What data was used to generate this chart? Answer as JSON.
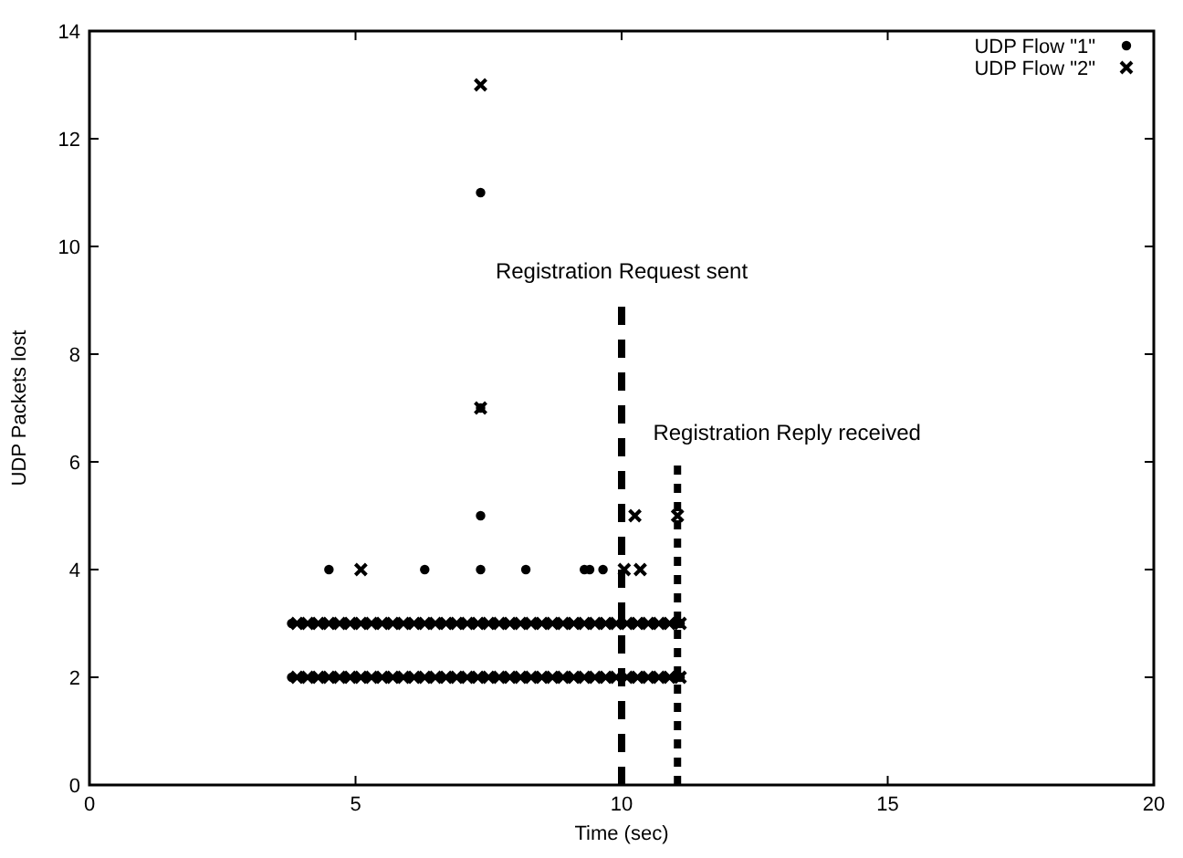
{
  "chart_data": {
    "type": "scatter",
    "xlabel": "Time (sec)",
    "ylabel": "UDP Packets lost",
    "xlim": [
      0,
      20
    ],
    "ylim": [
      0,
      14
    ],
    "xticks": [
      0,
      5,
      10,
      15,
      20
    ],
    "yticks": [
      0,
      2,
      4,
      6,
      8,
      10,
      12,
      14
    ],
    "grid": false,
    "legend": "top right",
    "series": [
      {
        "name": "UDP Flow \"1\"",
        "color": "#000000",
        "marker": "circle",
        "x": [
          3.8,
          4,
          4.2,
          4.4,
          4.6,
          4.8,
          5,
          5.2,
          5.4,
          5.6,
          5.8,
          6,
          6.2,
          6.4,
          6.6,
          6.8,
          7,
          7.2,
          7.4,
          7.6,
          7.8,
          8,
          8.2,
          8.4,
          8.6,
          8.8,
          9,
          9.2,
          9.4,
          9.6,
          9.8,
          10.2,
          10.4,
          10.6,
          10.8,
          11,
          11.1,
          3.8,
          4,
          4.2,
          4.4,
          4.6,
          4.8,
          5,
          5.2,
          5.4,
          5.6,
          5.8,
          6,
          6.2,
          6.4,
          6.6,
          6.8,
          7,
          7.2,
          7.4,
          7.6,
          7.8,
          8,
          8.2,
          8.4,
          8.6,
          8.8,
          9,
          9.2,
          9.4,
          9.6,
          9.8,
          10,
          10.2,
          10.4,
          10.6,
          10.8,
          11,
          11.1,
          4.5,
          6.3,
          7.35,
          8.2,
          9.3,
          9.4,
          9.65,
          7.35,
          7.35,
          7.35
        ],
        "values": [
          2,
          2,
          2,
          2,
          2,
          2,
          2,
          2,
          2,
          2,
          2,
          2,
          2,
          2,
          2,
          2,
          2,
          2,
          2,
          2,
          2,
          2,
          2,
          2,
          2,
          2,
          2,
          2,
          2,
          2,
          2,
          2,
          2,
          2,
          2,
          2,
          2,
          3,
          3,
          3,
          3,
          3,
          3,
          3,
          3,
          3,
          3,
          3,
          3,
          3,
          3,
          3,
          3,
          3,
          3,
          3,
          3,
          3,
          3,
          3,
          3,
          3,
          3,
          3,
          3,
          3,
          3,
          3,
          3,
          3,
          3,
          3,
          3,
          3,
          3,
          4,
          4,
          4,
          4,
          4,
          4,
          4,
          5,
          7,
          11
        ]
      },
      {
        "name": "UDP Flow \"2\"",
        "color": "#000000",
        "marker": "cross",
        "x": [
          3.9,
          4.1,
          4.3,
          4.5,
          4.7,
          4.9,
          5.1,
          5.3,
          5.5,
          5.7,
          5.9,
          6.1,
          6.3,
          6.5,
          6.7,
          6.9,
          7.1,
          7.3,
          7.5,
          7.7,
          7.9,
          8.1,
          8.3,
          8.5,
          8.7,
          8.9,
          9.1,
          9.3,
          9.5,
          9.7,
          9.9,
          10.1,
          10.3,
          10.5,
          10.7,
          10.9,
          11.1,
          3.9,
          4.1,
          4.3,
          4.5,
          4.7,
          4.9,
          5.1,
          5.3,
          5.5,
          5.7,
          5.9,
          6.1,
          6.3,
          6.5,
          6.7,
          6.9,
          7.1,
          7.3,
          7.5,
          7.7,
          7.9,
          8.1,
          8.3,
          8.5,
          8.7,
          8.9,
          9.1,
          9.3,
          9.5,
          9.7,
          9.9,
          10.1,
          10.3,
          10.5,
          10.7,
          10.9,
          11.1,
          5.1,
          10.05,
          10.35,
          10.25,
          11.05,
          7.35,
          7.35
        ],
        "values": [
          2,
          2,
          2,
          2,
          2,
          2,
          2,
          2,
          2,
          2,
          2,
          2,
          2,
          2,
          2,
          2,
          2,
          2,
          2,
          2,
          2,
          2,
          2,
          2,
          2,
          2,
          2,
          2,
          2,
          2,
          2,
          2,
          2,
          2,
          2,
          2,
          2,
          3,
          3,
          3,
          3,
          3,
          3,
          3,
          3,
          3,
          3,
          3,
          3,
          3,
          3,
          3,
          3,
          3,
          3,
          3,
          3,
          3,
          3,
          3,
          3,
          3,
          3,
          3,
          3,
          3,
          3,
          3,
          3,
          3,
          3,
          3,
          3,
          3,
          4,
          4,
          4,
          5,
          5,
          7,
          13
        ]
      },
      {
        "type": "line",
        "color": "#000000",
        "line_style": "dashed",
        "x": [
          10,
          10
        ],
        "values": [
          0,
          9
        ]
      },
      {
        "type": "line",
        "color": "#000000",
        "line_style": "dotted",
        "x": [
          11.05,
          11.05
        ],
        "values": [
          0,
          6
        ]
      }
    ],
    "annotations": [
      {
        "text": "Registration Request sent",
        "x": 10,
        "y": 9
      },
      {
        "text": "Registration Reply received",
        "x": 11.05,
        "y": 6
      }
    ]
  }
}
